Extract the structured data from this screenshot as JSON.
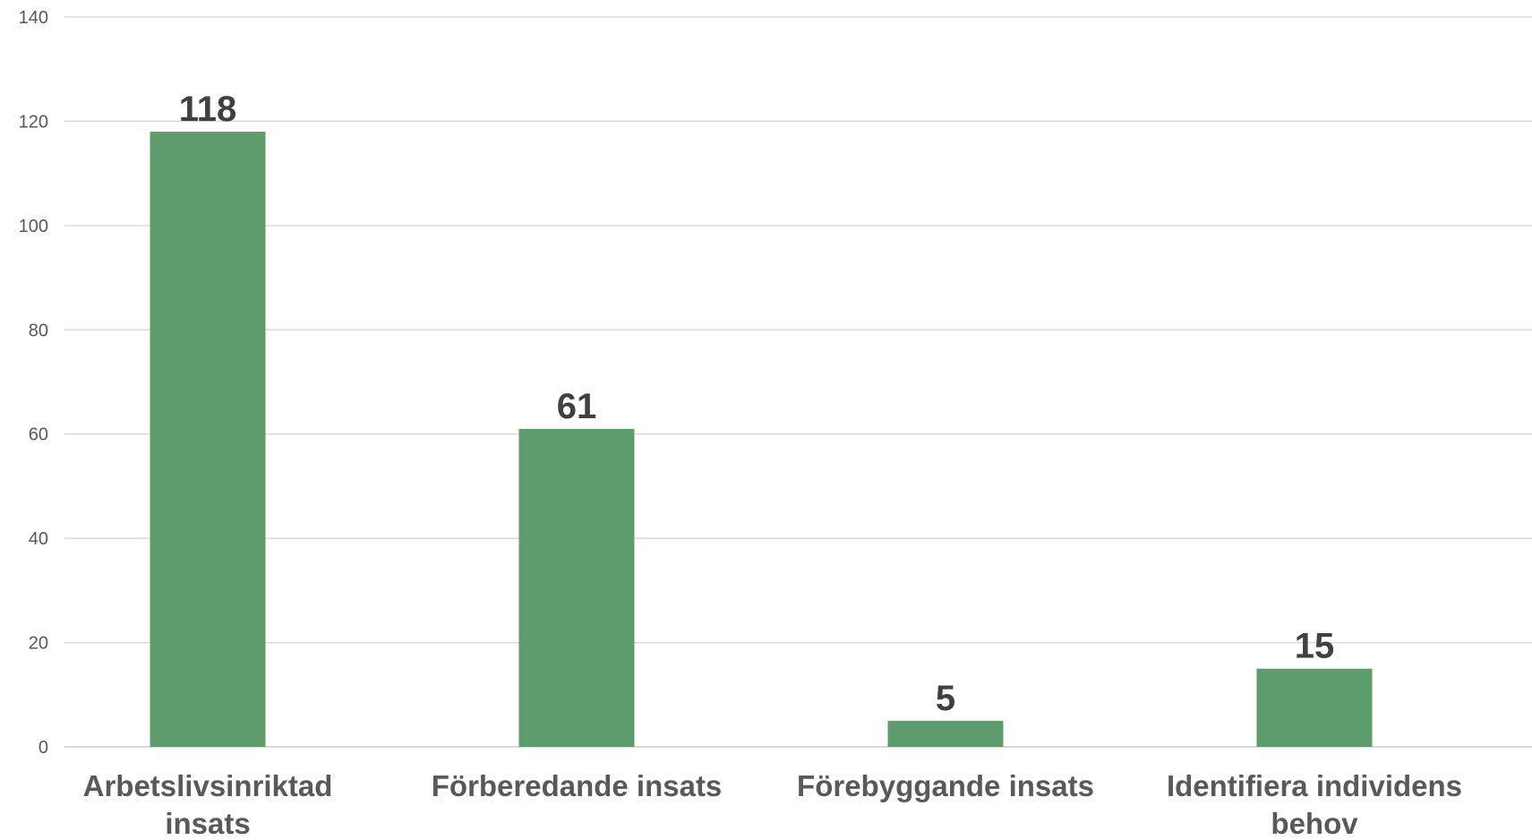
{
  "chart_data": {
    "type": "bar",
    "categories": [
      [
        "Arbetslivsinriktad",
        "insats"
      ],
      [
        "Förberedande insats"
      ],
      [
        "Förebyggande insats"
      ],
      [
        "Identifiera individens",
        "behov"
      ]
    ],
    "values": [
      118,
      61,
      5,
      15
    ],
    "value_labels": [
      "118",
      "61",
      "5",
      "15"
    ],
    "ylim": [
      0,
      140
    ],
    "yticks": [
      "0",
      "20",
      "40",
      "60",
      "80",
      "100",
      "120",
      "140"
    ],
    "grid": true,
    "bar_color": "#5e9c6c",
    "title": "",
    "xlabel": "",
    "ylabel": ""
  }
}
